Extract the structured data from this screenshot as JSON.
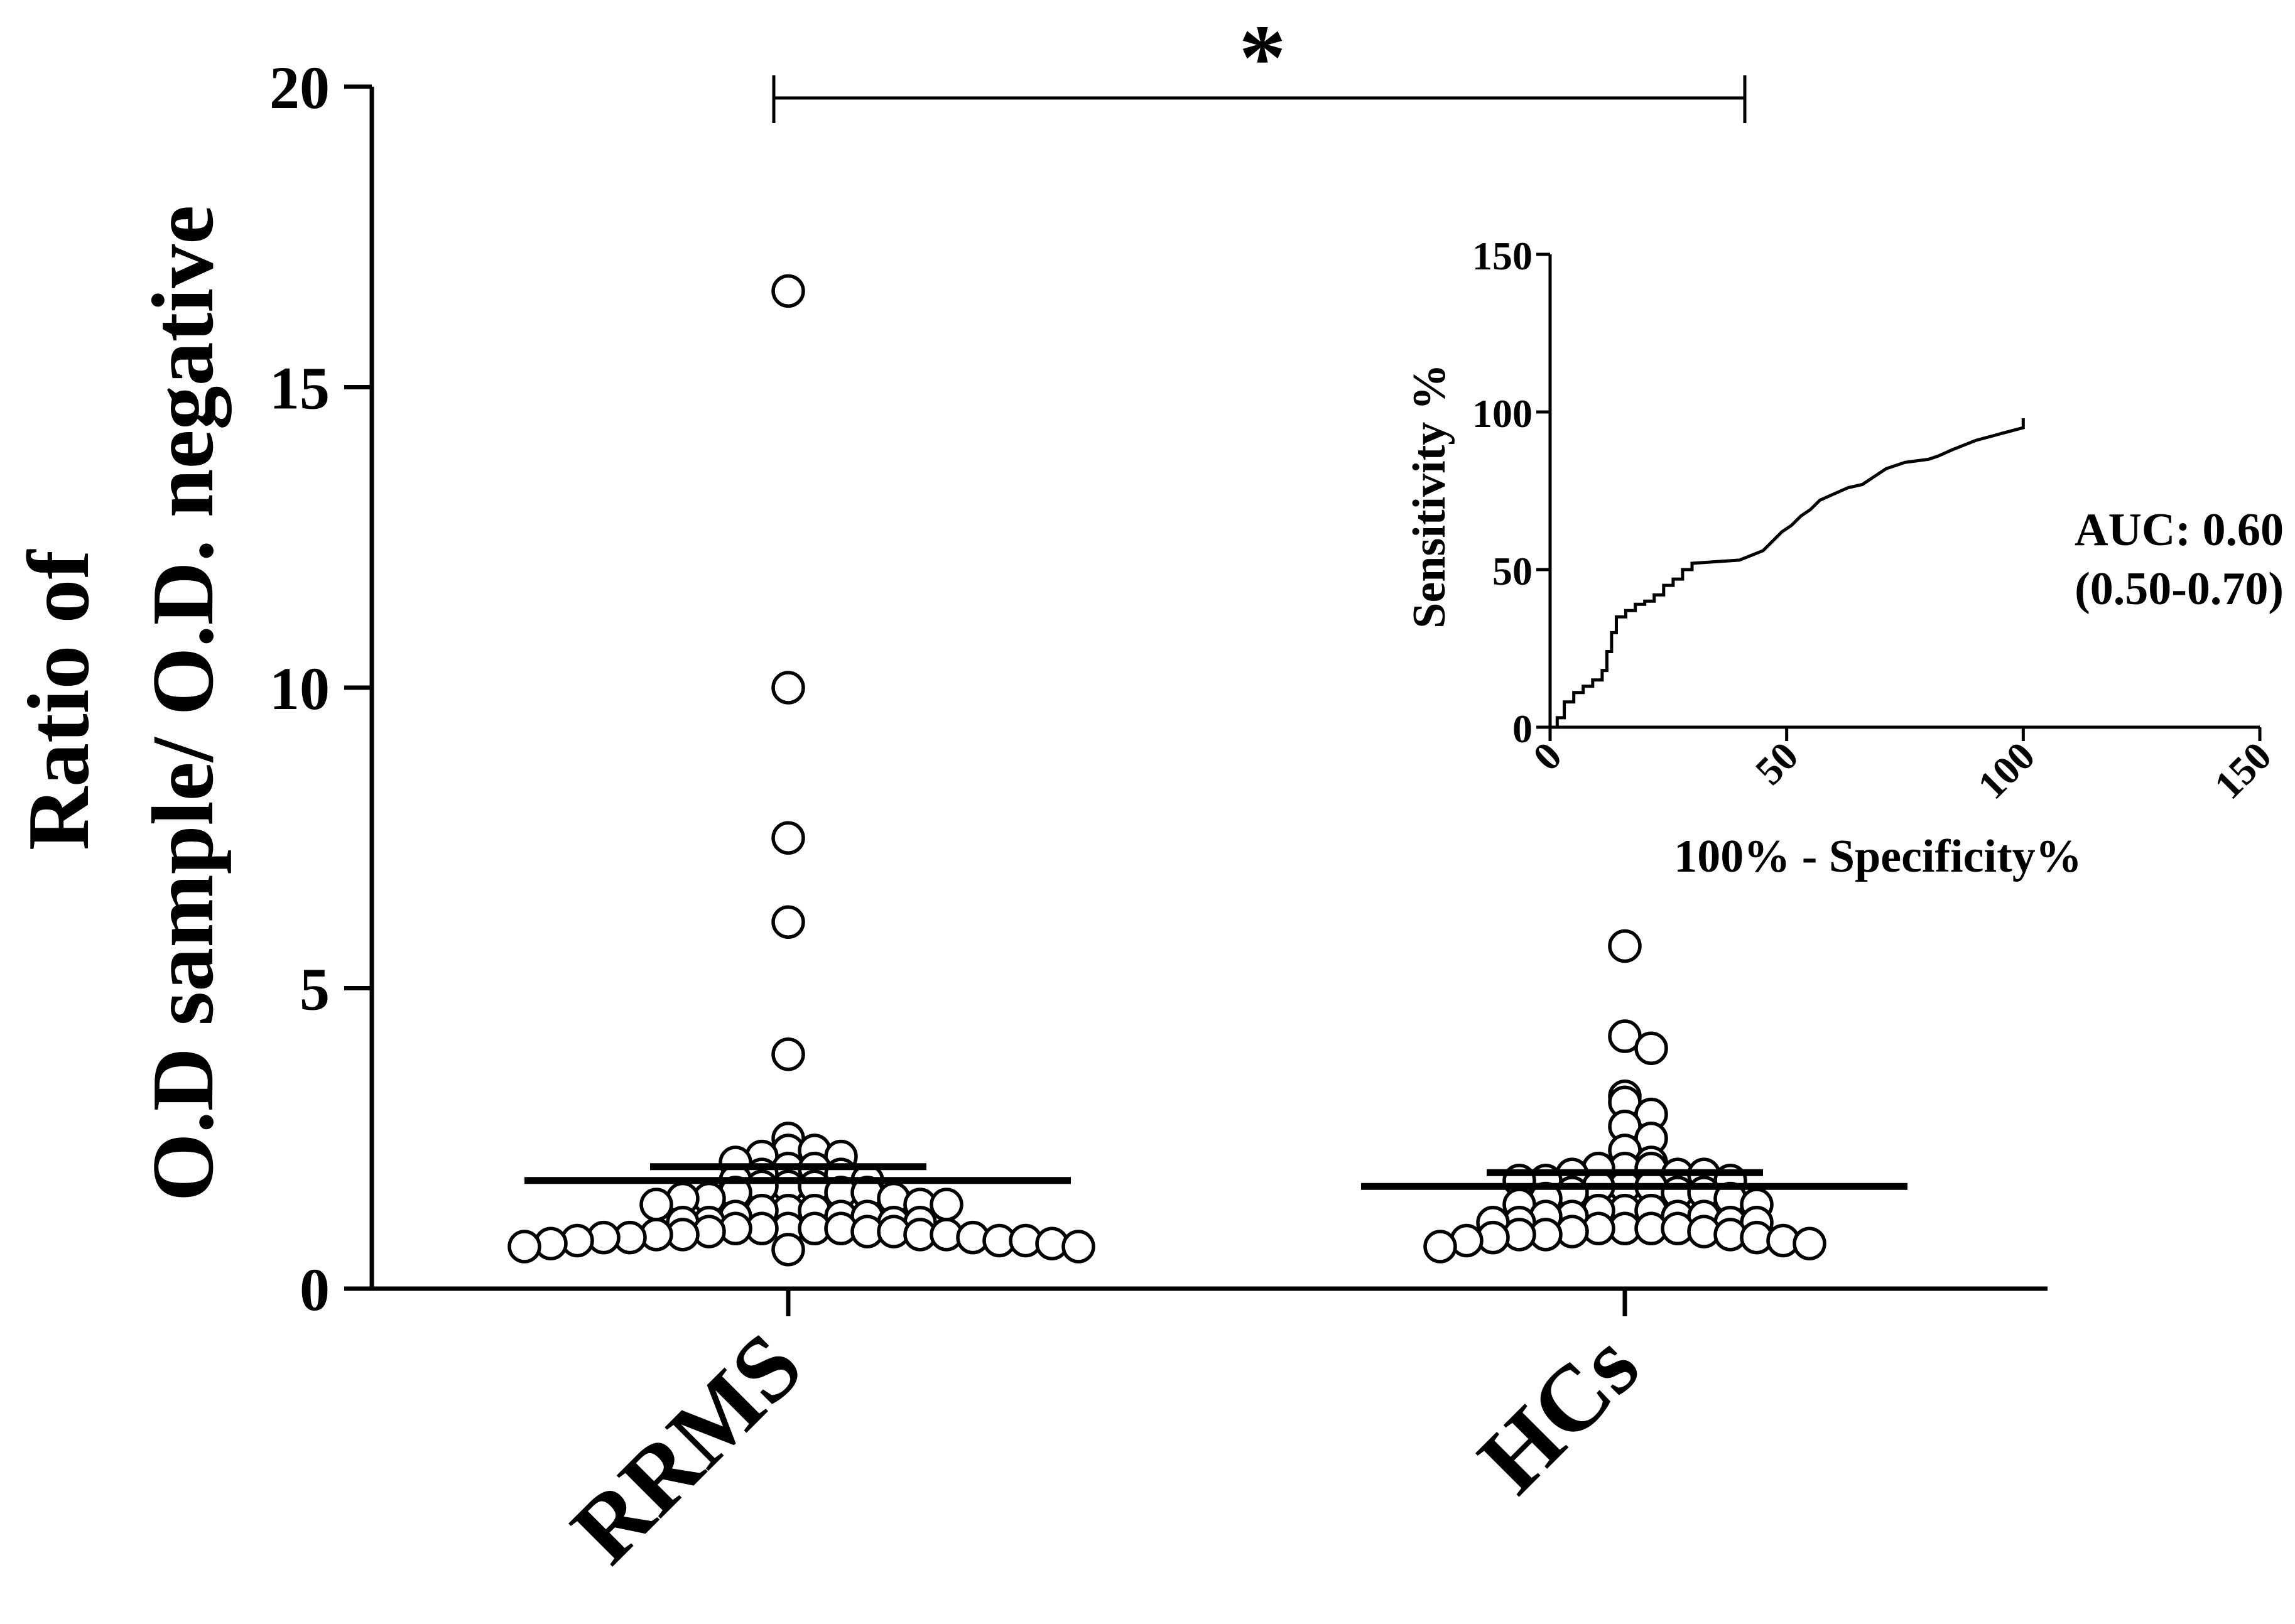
{
  "chart_data": [
    {
      "type": "scatter",
      "ylabel_line1": "Ratio of",
      "ylabel_line2": "O.D sample/ O.D. negative",
      "ylim": [
        0,
        20
      ],
      "yticks": [
        0,
        5,
        10,
        15,
        20
      ],
      "categories": [
        "RRMS",
        "HCs"
      ],
      "significance": "*",
      "series": [
        {
          "category": "RRMS",
          "mean": 1.8,
          "values": [
            16.6,
            10.0,
            7.5,
            6.1,
            3.9,
            2.5,
            2.3,
            2.3,
            2.2,
            2.2,
            2.1,
            2.0,
            2.0,
            1.9,
            1.9,
            1.8,
            1.8,
            1.7,
            1.7,
            1.7,
            1.6,
            1.6,
            1.6,
            1.5,
            1.5,
            1.5,
            1.4,
            1.4,
            1.4,
            1.3,
            1.3,
            1.3,
            1.2,
            1.2,
            1.2,
            1.1,
            1.1,
            1.1,
            1.1,
            1.0,
            1.0,
            1.0,
            1.0,
            1.0,
            0.95,
            0.95,
            0.95,
            0.9,
            0.9,
            0.9,
            0.9,
            0.85,
            0.85,
            0.85,
            0.8,
            0.8,
            0.8,
            0.75,
            0.75,
            0.7,
            0.7,
            0.65
          ]
        },
        {
          "category": "HCs",
          "mean": 1.7,
          "values": [
            5.7,
            4.2,
            4.0,
            3.2,
            3.1,
            2.9,
            2.7,
            2.5,
            2.3,
            2.1,
            2.0,
            2.0,
            2.0,
            1.9,
            1.9,
            1.9,
            1.8,
            1.8,
            1.8,
            1.7,
            1.7,
            1.7,
            1.6,
            1.6,
            1.6,
            1.5,
            1.5,
            1.4,
            1.4,
            1.3,
            1.3,
            1.3,
            1.2,
            1.2,
            1.2,
            1.2,
            1.1,
            1.1,
            1.1,
            1.1,
            1.0,
            1.0,
            1.0,
            1.0,
            0.95,
            0.95,
            0.9,
            0.9,
            0.9,
            0.85,
            0.85,
            0.8,
            0.8,
            0.75,
            0.7
          ]
        }
      ]
    },
    {
      "type": "line",
      "xlabel": "100% - Specificity%",
      "ylabel": "Sensitivity %",
      "xlim": [
        0,
        150
      ],
      "ylim": [
        0,
        150
      ],
      "xticks": [
        0,
        50,
        100,
        150
      ],
      "yticks": [
        0,
        50,
        100,
        150
      ],
      "annotation_line1": "AUC: 0.60",
      "annotation_line2": "(0.50-0.70)",
      "series": [
        {
          "x": [
            0,
            1.5,
            1.5,
            3,
            3,
            5,
            5,
            7,
            7,
            9,
            9,
            11,
            11,
            12,
            12,
            13,
            13,
            14,
            14,
            16,
            16,
            18,
            18,
            20,
            20,
            22,
            22,
            24,
            24,
            26,
            26,
            28,
            28,
            30,
            30,
            40,
            45,
            45,
            47,
            47,
            49,
            49,
            51,
            51,
            53,
            53,
            55,
            55,
            57,
            57,
            60,
            60,
            63,
            63,
            66,
            66,
            68,
            68,
            71,
            71,
            75,
            75,
            80,
            80,
            82,
            82,
            85,
            85,
            90,
            90,
            95,
            95,
            100,
            100
          ],
          "y": [
            0,
            0,
            3,
            3,
            8,
            8,
            11,
            11,
            13,
            13,
            15,
            15,
            18,
            18,
            24,
            24,
            30,
            30,
            35,
            35,
            37,
            37,
            39,
            39,
            40,
            40,
            42,
            42,
            45,
            45,
            47,
            47,
            50,
            50,
            52,
            53,
            56,
            56,
            59,
            59,
            62,
            62,
            64,
            64,
            67,
            67,
            69,
            69,
            72,
            72,
            74,
            74,
            76,
            76,
            77,
            77,
            79,
            79,
            82,
            82,
            84,
            84,
            85,
            85,
            86,
            86,
            88,
            88,
            91,
            91,
            93,
            93,
            95,
            98
          ]
        }
      ]
    }
  ]
}
